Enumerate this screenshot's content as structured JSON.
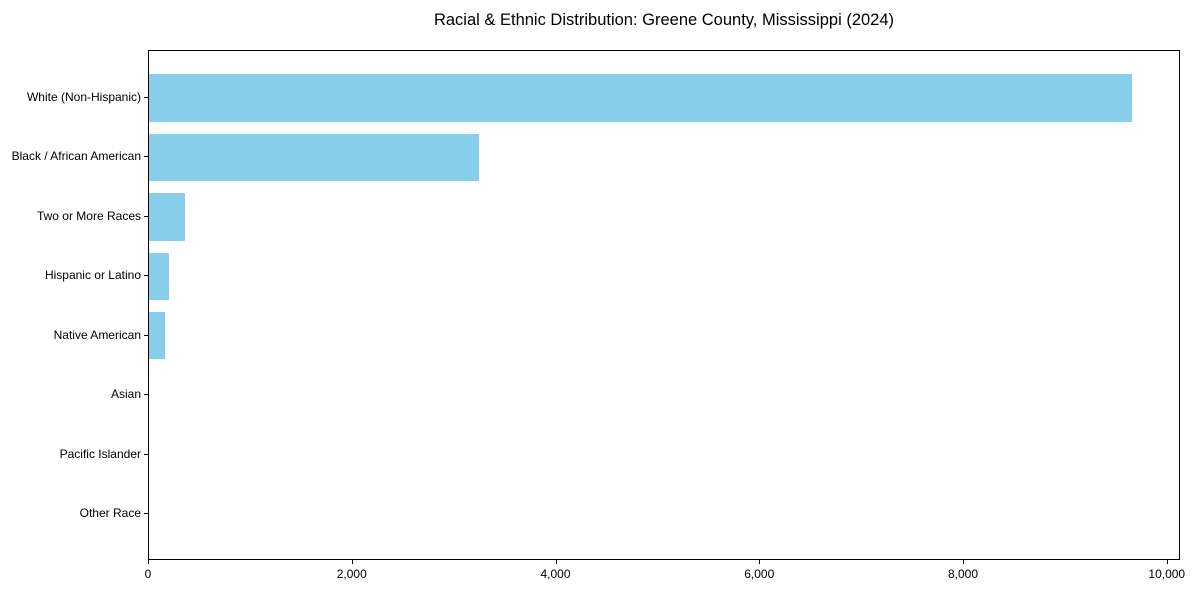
{
  "figure": {
    "background": "#ffffff",
    "spine_color": "#000000",
    "text_color": "#000000"
  },
  "chart_data": {
    "type": "bar",
    "orientation": "horizontal",
    "title": "Racial & Ethnic Distribution: Greene County, Mississippi (2024)",
    "categories": [
      "White (Non-Hispanic)",
      "Black / African American",
      "Two or More Races",
      "Hispanic or Latino",
      "Native American",
      "Asian",
      "Pacific Islander",
      "Other Race"
    ],
    "values": [
      9650,
      3235,
      350,
      200,
      160,
      0,
      0,
      0
    ],
    "bar_color": "#87CEEB",
    "xlabel": "",
    "ylabel": "",
    "xlim": [
      0,
      10130
    ],
    "xticks": [
      0,
      2000,
      4000,
      6000,
      8000,
      10000
    ],
    "xtick_labels": [
      "0",
      "2,000",
      "4,000",
      "6,000",
      "8,000",
      "10,000"
    ],
    "grid": false,
    "legend": false
  }
}
